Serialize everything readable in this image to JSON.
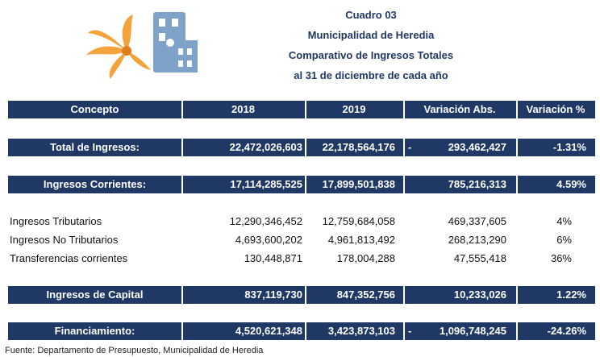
{
  "title": {
    "lines": [
      "Cuadro 03",
      "Municipalidad de Heredia",
      "Comparativo de Ingresos Totales",
      "al 31 de diciembre de cada año"
    ]
  },
  "table": {
    "header": [
      "Concepto",
      "2018",
      "2019",
      "Variación Abs.",
      "Variación %"
    ],
    "rows": [
      {
        "style": "band",
        "cells": [
          "Total de Ingresos:",
          "22,472,026,603",
          "22,178,564,176",
          "293,462,427",
          "-1.31%"
        ],
        "sign": "-"
      },
      {
        "style": "band",
        "cells": [
          "Ingresos Corrientes:",
          "17,114,285,525",
          "17,899,501,838",
          "785,216,313",
          "4.59%"
        ]
      },
      {
        "style": "plain",
        "cells": [
          "Ingresos Tributarios",
          "12,290,346,452",
          "12,759,684,058",
          "469,337,605",
          "4%"
        ]
      },
      {
        "style": "plain",
        "cells": [
          "Ingresos No Tributarios",
          "4,693,600,202",
          "4,961,813,492",
          "268,213,290",
          "6%"
        ]
      },
      {
        "style": "plain",
        "cells": [
          "Transferencias corrientes",
          "130,448,871",
          "178,004,288",
          "47,555,418",
          "36%"
        ]
      },
      {
        "style": "band",
        "cells": [
          "Ingresos de Capital",
          "837,119,730",
          "847,352,756",
          "10,233,026",
          "1.22%"
        ]
      },
      {
        "style": "band",
        "cells": [
          "Financiamiento:",
          "4,520,621,348",
          "3,423,873,103",
          "1,096,748,245",
          "-24.26%"
        ],
        "sign": "-"
      }
    ]
  },
  "footer": "Fuente: Departamento de Presupuesto, Municipalidad de Heredia"
}
